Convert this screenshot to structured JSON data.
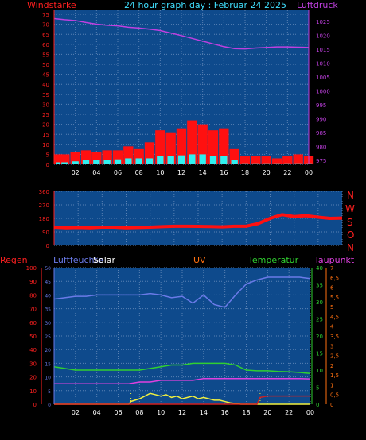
{
  "colors": {
    "background": "#000000",
    "plot_bg": "#0e4a8c",
    "grid": "#5a82b4",
    "axis_red": "#ff2020",
    "title_cyan": "#40e0ff",
    "pressure": "#c040e0",
    "wind": "#ff1010",
    "gust_cyan": "#30f0f0",
    "humidity": "#6a7ae8",
    "solar_yellow": "#f0f040",
    "uv_red": "#ff2020",
    "temperature": "#30d030",
    "dewpoint": "#e040e0",
    "rain": "#d02020"
  },
  "chart_data": [
    {
      "type": "bar",
      "title": "24 hour graph day : Februar 24 2025",
      "ylabel_left": "Windstärke",
      "ylabel_right": "Luftdruck",
      "x_ticks": [
        "02",
        "04",
        "06",
        "08",
        "10",
        "12",
        "14",
        "16",
        "18",
        "20",
        "22",
        "00"
      ],
      "y_left_ticks": [
        "0",
        "5",
        "10",
        "15",
        "20",
        "25",
        "30",
        "35",
        "40",
        "45",
        "50",
        "55",
        "60",
        "65",
        "70",
        "75"
      ],
      "y_left_range": [
        0,
        77
      ],
      "y_right_ticks": [
        "975",
        "980",
        "985",
        "990",
        "995",
        "1000",
        "1005",
        "1010",
        "1015",
        "1020",
        "1025"
      ],
      "y_right_range": [
        973.5,
        1029
      ],
      "series": [
        {
          "name": "Luftdruck",
          "type": "line",
          "x": [
            0,
            1,
            2,
            3,
            4,
            5,
            6,
            7,
            8,
            9,
            10,
            11,
            12,
            13,
            14,
            15,
            16,
            17,
            18,
            19,
            20,
            21,
            22,
            23,
            24
          ],
          "values": [
            1026,
            1025.6,
            1025.3,
            1024.6,
            1024,
            1023.6,
            1023.4,
            1022.9,
            1022.6,
            1022.2,
            1021.7,
            1020.8,
            1019.9,
            1018.9,
            1017.9,
            1016.9,
            1015.9,
            1015.2,
            1015.1,
            1015.4,
            1015.6,
            1015.8,
            1015.8,
            1015.7,
            1015.6
          ]
        },
        {
          "type": "bar",
          "x": [
            0,
            1,
            2,
            3,
            4,
            5,
            6,
            7,
            8,
            9,
            10,
            11,
            12,
            13,
            14,
            15,
            16,
            17,
            18,
            19,
            20,
            21,
            22,
            23,
            24
          ],
          "values": [
            5,
            5,
            6,
            7,
            6,
            7,
            7,
            9,
            8,
            11,
            17,
            16,
            18,
            22,
            20,
            17,
            18,
            8,
            4,
            4,
            4,
            3,
            4,
            5,
            4
          ]
        },
        {
          "type": "bar",
          "x": [
            0,
            1,
            2,
            3,
            4,
            5,
            6,
            7,
            8,
            9,
            10,
            11,
            12,
            13,
            14,
            15,
            16,
            17,
            18,
            19,
            20,
            21,
            22,
            23,
            24
          ],
          "values": [
            1,
            1,
            1.5,
            2,
            2,
            2,
            2.5,
            3,
            3,
            3,
            4,
            4,
            4.5,
            5,
            5,
            4,
            4,
            2,
            0.5,
            0.5,
            0.5,
            0.5,
            0.5,
            0.5,
            0.5
          ]
        }
      ]
    },
    {
      "type": "line",
      "ylabel_right": [
        "N",
        "W",
        "S",
        "O",
        "N"
      ],
      "y_ticks": [
        "0",
        "90",
        "180",
        "270",
        "360"
      ],
      "y_range": [
        0,
        360
      ],
      "series": [
        {
          "type": "line",
          "x": [
            0,
            1,
            2,
            3,
            4,
            5,
            6,
            7,
            8,
            9,
            10,
            11,
            12,
            13,
            14,
            15,
            16,
            17,
            18,
            19,
            20,
            21,
            22,
            23,
            24
          ],
          "values": [
            122,
            118,
            120,
            118,
            122,
            122,
            118,
            120,
            122,
            125,
            128,
            128,
            127,
            126,
            124,
            128,
            128,
            145,
            180,
            205,
            192,
            198,
            188,
            180,
            182
          ]
        }
      ]
    },
    {
      "type": "line",
      "labels": {
        "rain": "Regen",
        "humidity": "Luftfeuchte",
        "solar": "Solar",
        "uv": "UV",
        "temperature": "Temperatur",
        "dewpoint": "Taupunkt"
      },
      "x_ticks": [
        "02",
        "04",
        "06",
        "08",
        "10",
        "12",
        "14",
        "16",
        "18",
        "20",
        "22",
        "00"
      ],
      "y_rain_ticks": [
        "0",
        "10",
        "20",
        "30",
        "40",
        "50",
        "60",
        "70",
        "80",
        "90",
        "100"
      ],
      "y_rain_range": [
        0,
        100
      ],
      "y_humidity_ticks": [
        "0",
        "5",
        "10",
        "15",
        "20",
        "25",
        "30",
        "35",
        "40",
        "45",
        "50"
      ],
      "y_temp_ticks": [
        "0",
        "5",
        "10",
        "15",
        "20",
        "25",
        "30",
        "35",
        "40"
      ],
      "y_temp_range": [
        0,
        40
      ],
      "y_uv_ticks": [
        "0",
        "0,5",
        "1",
        "1,5",
        "2",
        "2,5",
        "3",
        "3,5",
        "4",
        "4,5",
        "5",
        "5,5",
        "6",
        "6,5",
        "7"
      ],
      "series": [
        {
          "name": "Luftfeuchte",
          "type": "line",
          "x": [
            0,
            1,
            2,
            3,
            4,
            5,
            6,
            7,
            8,
            9,
            10,
            11,
            12,
            13,
            14,
            15,
            16,
            17,
            18,
            19,
            20,
            21,
            22,
            23,
            24
          ],
          "values": [
            77,
            78,
            79,
            79,
            80,
            80,
            80,
            80,
            80,
            81,
            80,
            78,
            79,
            74,
            80,
            73,
            71,
            80,
            88,
            91,
            93,
            93,
            93,
            93,
            92
          ]
        },
        {
          "name": "Solar",
          "type": "line",
          "x": [
            0,
            7,
            7.2,
            8,
            8.5,
            9,
            9.5,
            10,
            10.5,
            11,
            11.5,
            12,
            12.5,
            13,
            13.5,
            14,
            14.5,
            15,
            15.5,
            16,
            16.5,
            17,
            17.5,
            24
          ],
          "values": [
            0,
            0,
            2,
            4,
            6,
            8,
            7,
            6,
            7,
            5,
            6,
            4,
            5,
            6,
            4,
            5,
            4,
            3,
            3,
            2,
            1,
            0.5,
            0,
            0
          ]
        },
        {
          "name": "Temperatur",
          "type": "line",
          "x": [
            0,
            1,
            2,
            3,
            4,
            5,
            6,
            7,
            8,
            9,
            10,
            11,
            12,
            13,
            14,
            15,
            16,
            17,
            18,
            19,
            20,
            21,
            22,
            23,
            24
          ],
          "values": [
            11,
            10.5,
            10,
            10,
            10,
            10,
            10,
            10,
            10,
            10.5,
            11,
            11.5,
            11.5,
            12,
            12,
            12,
            12,
            11.5,
            10,
            9.8,
            9.8,
            9.6,
            9.5,
            9.3,
            9
          ]
        },
        {
          "name": "Taupunkt",
          "type": "line",
          "x": [
            0,
            1,
            2,
            3,
            4,
            5,
            6,
            7,
            8,
            9,
            10,
            11,
            12,
            13,
            14,
            15,
            16,
            17,
            18,
            19,
            20,
            21,
            22,
            23,
            24
          ],
          "values": [
            6,
            6,
            6,
            6,
            6,
            6,
            6,
            6,
            6.5,
            6.5,
            7,
            7,
            7,
            7,
            7.5,
            7.5,
            7.5,
            7.5,
            7.5,
            7.5,
            7.5,
            7.5,
            7.5,
            7.5,
            7.4
          ]
        },
        {
          "name": "Regen",
          "type": "line",
          "x": [
            0,
            1,
            2,
            3,
            4,
            5,
            6,
            7,
            8,
            9,
            10,
            11,
            12,
            13,
            14,
            15,
            16,
            17,
            18,
            19,
            19.3,
            20,
            21,
            22,
            23,
            24
          ],
          "values": [
            0,
            0,
            0,
            0,
            0,
            0,
            0,
            0,
            0,
            0,
            0,
            0,
            0,
            0,
            0,
            0,
            0,
            0,
            0,
            0,
            5,
            6,
            6,
            6,
            6,
            6
          ]
        }
      ]
    }
  ]
}
